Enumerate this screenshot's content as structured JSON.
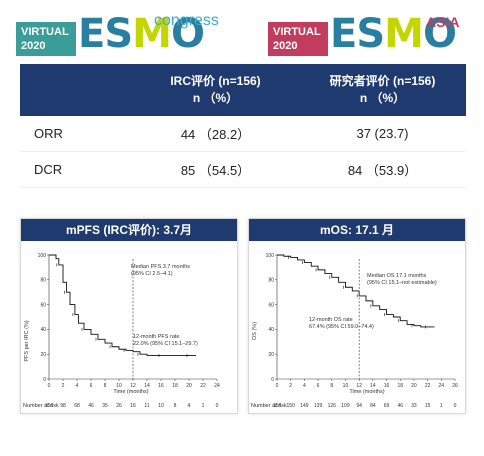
{
  "logos": {
    "left": {
      "virtual": "VIRTUAL",
      "year": "2020",
      "brand_a": "ES",
      "brand_b": "M",
      "brand_c": "O",
      "tag": "congress"
    },
    "right": {
      "virtual": "VIRTUAL",
      "year": "2020",
      "brand_a": "ES",
      "brand_b": "M",
      "brand_c": "O",
      "tag": "ASIA"
    }
  },
  "table": {
    "headers": {
      "irc_line1": "IRC评价 (n=156)",
      "irc_line2": "n （%）",
      "inv_line1": "研究者评价 (n=156)",
      "inv_line2": "n （%）"
    },
    "rows": [
      {
        "label": "ORR",
        "irc": "44 （28.2）",
        "inv": "37 (23.7)"
      },
      {
        "label": "DCR",
        "irc": "85 （54.5）",
        "inv": "84 （53.9）"
      }
    ]
  },
  "pfs_panel": {
    "title": "mPFS (IRC评价): 3.7月",
    "ylabel": "PFS per IRC (%)",
    "xlabel": "Time (months)",
    "median_line1": "Median PFS 3.7 months",
    "median_line2": "(95% CI 2.5–4.1)",
    "rate_line1": "12-month PFS rate",
    "rate_line2": "22.0% (95% CI 15.1–29.7)",
    "risk_label": "Number at risk",
    "risk_numbers": [
      "156",
      "98",
      "68",
      "46",
      "35",
      "26",
      "16",
      "11",
      "10",
      "8",
      "4",
      "1",
      "0"
    ]
  },
  "os_panel": {
    "title": "mOS: 17.1 月",
    "ylabel": "OS (%)",
    "xlabel": "Time (months)",
    "median_line1": "Median OS 17.1 months",
    "median_line2": "(95% CI 15.1–not estimable)",
    "rate_line1": "12-month OS rate",
    "rate_line2": "67.4% (95% CI 59.0–74.4)",
    "risk_label": "Number at risk",
    "risk_numbers": [
      "156",
      "150",
      "149",
      "139",
      "126",
      "109",
      "94",
      "84",
      "69",
      "46",
      "33",
      "15",
      "1",
      "0"
    ]
  },
  "chart_data": [
    {
      "type": "line",
      "title": "mPFS (IRC评价): 3.7月",
      "xlabel": "Time (months)",
      "ylabel": "PFS per IRC (%)",
      "xlim": [
        0,
        24
      ],
      "ylim": [
        0,
        100
      ],
      "x_ticks": [
        0,
        2,
        4,
        6,
        8,
        10,
        12,
        14,
        16,
        18,
        20,
        22,
        24
      ],
      "y_ticks": [
        0,
        20,
        40,
        60,
        80,
        100
      ],
      "series": [
        {
          "x": [
            0,
            1,
            1.4,
            2,
            2.5,
            3,
            3.7,
            4.2,
            5,
            6,
            7,
            8,
            9,
            10,
            11,
            12,
            13,
            14,
            16,
            18,
            20,
            21
          ],
          "y": [
            100,
            97,
            92,
            78,
            70,
            60,
            52,
            45,
            40,
            36,
            32,
            29,
            26,
            24,
            23,
            22,
            20,
            19,
            19,
            19,
            19,
            19
          ]
        }
      ],
      "annotations": [
        "Median PFS 3.7 months (95% CI 2.5–4.1)",
        "12-month PFS rate 22.0% (95% CI 15.1–29.7)"
      ]
    },
    {
      "type": "line",
      "title": "mOS: 17.1 月",
      "xlabel": "Time (months)",
      "ylabel": "OS (%)",
      "xlim": [
        0,
        26
      ],
      "ylim": [
        0,
        100
      ],
      "x_ticks": [
        0,
        2,
        4,
        6,
        8,
        10,
        12,
        14,
        16,
        18,
        20,
        22,
        24,
        26
      ],
      "y_ticks": [
        0,
        20,
        40,
        60,
        80,
        100
      ],
      "series": [
        {
          "x": [
            0,
            1,
            2,
            3,
            4,
            5,
            6,
            7,
            8,
            9,
            10,
            11,
            12,
            13,
            14,
            15,
            16,
            17,
            18,
            19,
            20,
            21,
            22,
            23
          ],
          "y": [
            100,
            99,
            98,
            96,
            94,
            91,
            88,
            85,
            82,
            78,
            74,
            71,
            67,
            63,
            59,
            56,
            52,
            50,
            47,
            44,
            43,
            42,
            42,
            42
          ]
        }
      ],
      "annotations": [
        "Median OS 17.1 months (95% CI 15.1–not estimable)",
        "12-month OS rate 67.4% (95% CI 59.0–74.4)"
      ]
    }
  ]
}
